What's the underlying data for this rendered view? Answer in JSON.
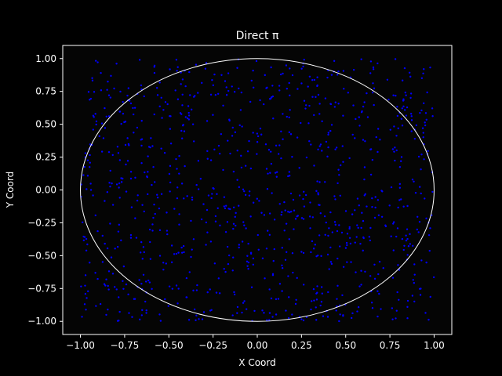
{
  "chart_data": {
    "type": "scatter",
    "title": "Direct π",
    "xlabel": "X Coord",
    "ylabel": "Y Coord",
    "xlim": [
      -1.1,
      1.1
    ],
    "ylim": [
      -1.1,
      1.1
    ],
    "grid": false,
    "x_ticks": [
      "−1.00",
      "−0.75",
      "−0.50",
      "−0.25",
      "0.00",
      "0.25",
      "0.50",
      "0.75",
      "1.00"
    ],
    "y_ticks": [
      "−1.00",
      "−0.75",
      "−0.50",
      "−0.25",
      "0.00",
      "0.25",
      "0.50",
      "0.75",
      "1.00"
    ],
    "x_tick_values": [
      -1.0,
      -0.75,
      -0.5,
      -0.25,
      0.0,
      0.25,
      0.5,
      0.75,
      1.0
    ],
    "y_tick_values": [
      -1.0,
      -0.75,
      -0.5,
      -0.25,
      0.0,
      0.25,
      0.5,
      0.75,
      1.0
    ],
    "points": {
      "distribution": "uniform",
      "count": 1000,
      "x_range": [
        -1,
        1
      ],
      "y_range": [
        -1,
        1
      ],
      "color": "#0000ff",
      "marker": "dot"
    },
    "circle": {
      "center": [
        0,
        0
      ],
      "radius": 1,
      "color": "#ffffff"
    },
    "colors": {
      "background": "#000000",
      "axes_face": "#050505",
      "axes_edge": "#ffffff",
      "text": "#ffffff"
    }
  }
}
